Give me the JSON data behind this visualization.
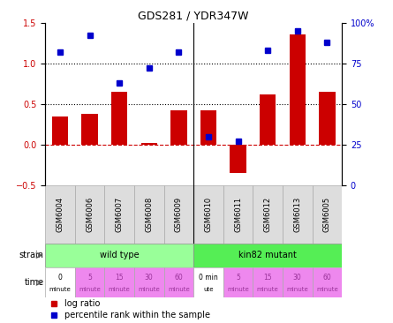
{
  "title": "GDS281 / YDR347W",
  "samples": [
    "GSM6004",
    "GSM6006",
    "GSM6007",
    "GSM6008",
    "GSM6009",
    "GSM6010",
    "GSM6011",
    "GSM6012",
    "GSM6013",
    "GSM6005"
  ],
  "log_ratio": [
    0.35,
    0.38,
    0.65,
    0.02,
    0.42,
    0.42,
    -0.35,
    0.62,
    1.35,
    0.65
  ],
  "percentile": [
    82,
    92,
    63,
    72,
    82,
    30,
    27,
    83,
    95,
    88
  ],
  "ylim_left": [
    -0.5,
    1.5
  ],
  "ylim_right": [
    0,
    100
  ],
  "yticks_left": [
    -0.5,
    0.0,
    0.5,
    1.0,
    1.5
  ],
  "yticks_right": [
    0,
    25,
    50,
    75,
    100
  ],
  "bar_color": "#cc0000",
  "dot_color": "#0000cc",
  "hline_y": [
    0.5,
    1.0
  ],
  "zero_line_color": "#cc0000",
  "strain_labels": [
    "wild type",
    "kin82 mutant"
  ],
  "strain_colors": [
    "#99ff99",
    "#55ee55"
  ],
  "time_labels_top": [
    "0",
    "5",
    "15",
    "30",
    "60",
    "0 min",
    "5",
    "15",
    "30",
    "60"
  ],
  "time_labels_bot": [
    "minute",
    "minute",
    "minute",
    "minute",
    "minute",
    "ute",
    "minute",
    "minute",
    "minute",
    "minute"
  ],
  "time_colors": [
    "white",
    "#ee88ee",
    "#ee88ee",
    "#ee88ee",
    "#ee88ee",
    "white",
    "#ee88ee",
    "#ee88ee",
    "#ee88ee",
    "#ee88ee"
  ],
  "legend_red": "log ratio",
  "legend_blue": "percentile rank within the sample"
}
